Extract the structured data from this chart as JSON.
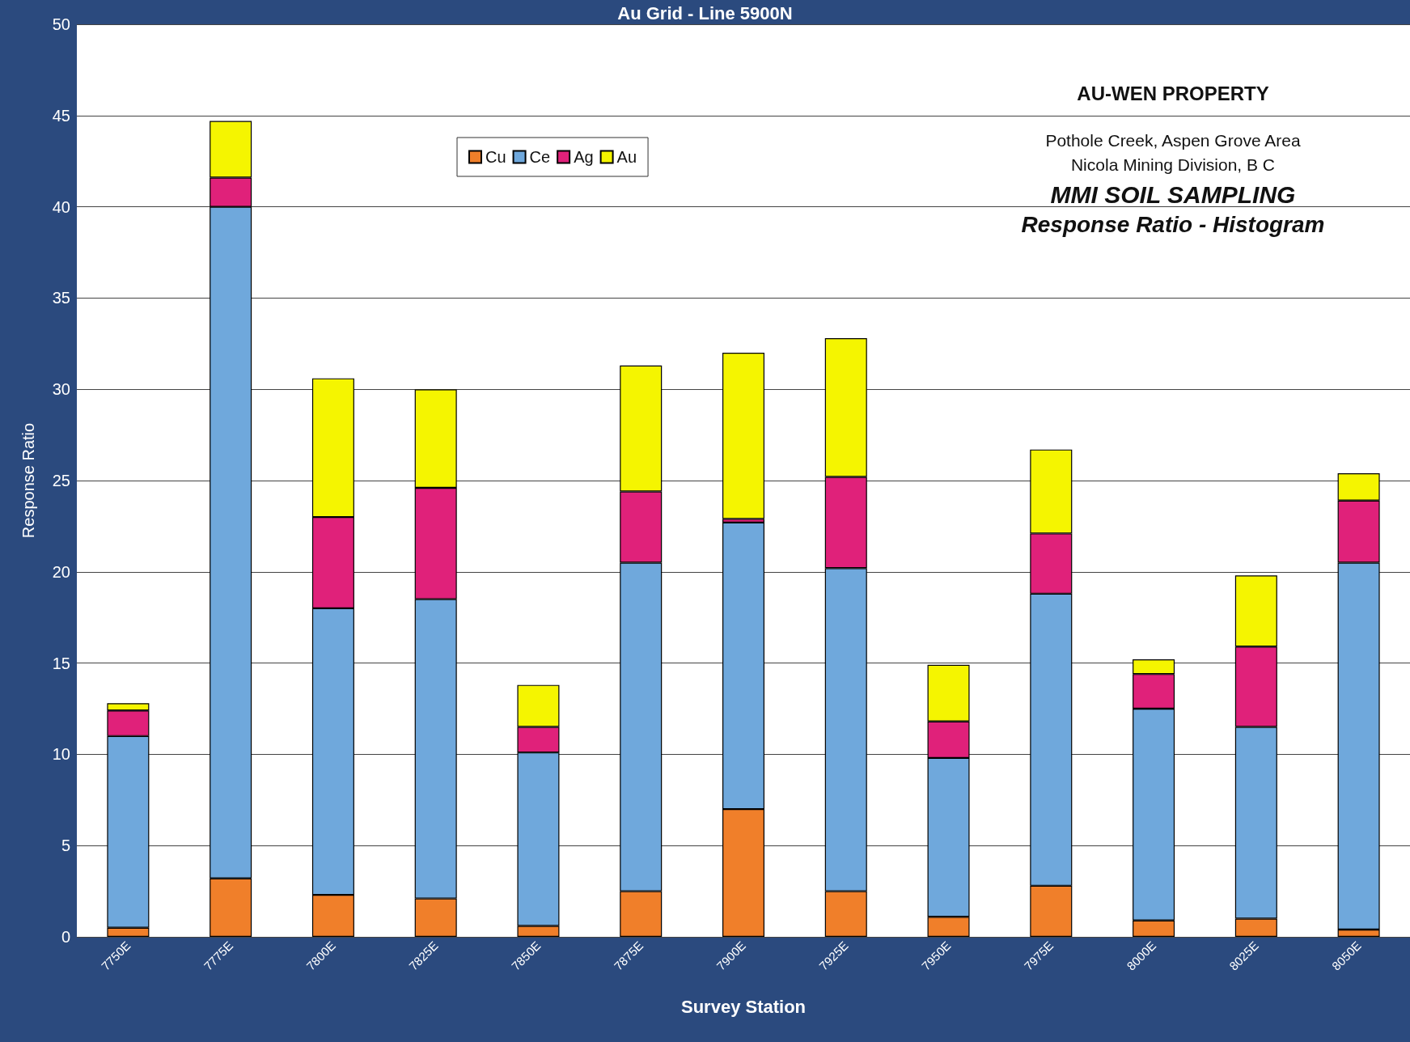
{
  "chart_data": {
    "type": "bar",
    "title": "Au Grid - Line 5900N",
    "xlabel": "Survey Station",
    "ylabel": "Response Ratio",
    "categories": [
      "7750E",
      "7775E",
      "7800E",
      "7825E",
      "7850E",
      "7875E",
      "7900E",
      "7925E",
      "7950E",
      "7975E",
      "8000E",
      "8025E",
      "8050E"
    ],
    "stacked": true,
    "series": [
      {
        "name": "Cu",
        "color": "#f07f2a",
        "values": [
          0.5,
          3.2,
          2.3,
          2.1,
          0.6,
          2.5,
          7,
          2.5,
          1.1,
          2.8,
          0.9,
          1.0,
          0.4
        ]
      },
      {
        "name": "Ce",
        "color": "#6fa8dc",
        "values": [
          10.5,
          36.8,
          15.7,
          16.4,
          9.5,
          18,
          15.7,
          17.7,
          8.7,
          16,
          11.6,
          10.5,
          20.1
        ]
      },
      {
        "name": "Ag",
        "color": "#e0217a",
        "values": [
          1.4,
          1.6,
          5,
          6.1,
          1.4,
          3.9,
          0.2,
          5,
          2,
          3.3,
          1.9,
          4.4,
          3.4
        ]
      },
      {
        "name": "Au",
        "color": "#f5f500",
        "values": [
          0.4,
          3.1,
          7.6,
          5.4,
          2.3,
          6.9,
          9.1,
          7.6,
          3.1,
          4.6,
          0.8,
          3.9,
          1.5
        ]
      }
    ],
    "ylim": [
      0,
      50
    ],
    "yticks": [
      0,
      5,
      10,
      15,
      20,
      25,
      30,
      35,
      40,
      45,
      50
    ],
    "grid": "y",
    "legend": "top left",
    "annotations": [
      "AU-WEN PROPERTY",
      "Pothole Creek, Aspen Grove Area",
      "Nicola Mining Division, B C",
      "MMI SOIL SAMPLING",
      "Response Ratio - Histogram"
    ]
  }
}
